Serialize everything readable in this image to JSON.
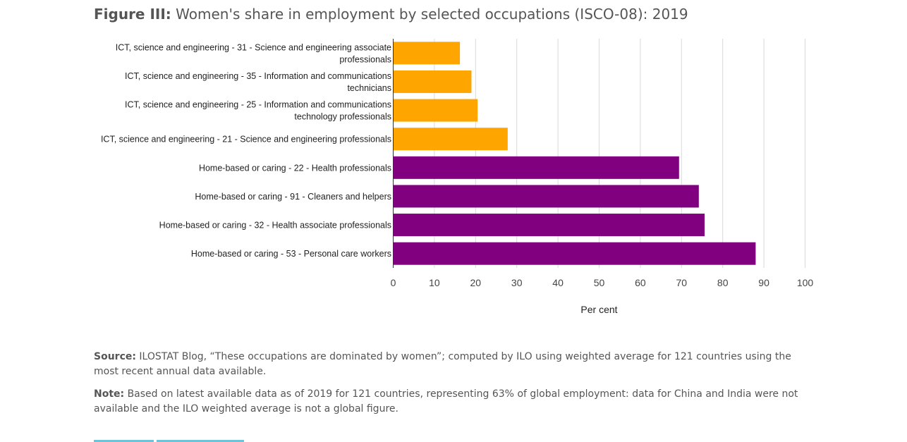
{
  "figure": {
    "label": "Figure III:",
    "title": "Women's share in employment by selected occupations (ISCO-08): 2019"
  },
  "colors": {
    "ict": "#FFA500",
    "home": "#800080",
    "grid": "#d9d9d9",
    "axis": "#333333"
  },
  "chart_data": {
    "type": "bar",
    "orientation": "horizontal",
    "categories": [
      [
        "ICT, science and engineering - 31 - Science and engineering associate",
        "professionals"
      ],
      [
        "ICT, science and engineering - 35 - Information and communications",
        "technicians"
      ],
      [
        "ICT, science and engineering - 25 - Information and communications",
        "technology professionals"
      ],
      [
        "ICT, science and engineering - 21 - Science and engineering professionals"
      ],
      [
        "Home-based or caring - 22 - Health professionals"
      ],
      [
        "Home-based or caring - 91 - Cleaners and helpers"
      ],
      [
        "Home-based or caring - 32 - Health associate professionals"
      ],
      [
        "Home-based or caring - 53 - Personal care workers"
      ]
    ],
    "values": [
      16.2,
      19.0,
      20.5,
      27.8,
      69.4,
      74.2,
      75.6,
      88.0
    ],
    "groups": [
      "ict",
      "ict",
      "ict",
      "ict",
      "home",
      "home",
      "home",
      "home"
    ],
    "xlabel": "Per cent",
    "xlim": [
      0,
      100
    ],
    "xticks": [
      0,
      10,
      20,
      30,
      40,
      50,
      60,
      70,
      80,
      90,
      100
    ],
    "grid": true,
    "legend": "none"
  },
  "notes": {
    "source_label": "Source:",
    "source_text": " ILOSTAT Blog, “These occupations are dominated by women”; computed by ILO using weighted average for 121 countries using the most recent annual data available.",
    "note_label": "Note:",
    "note_text": " Based on latest available data as of 2019 for 121 countries, representing 63% of global employment: data for China and India were not available and the ILO weighted average is not a global figure."
  }
}
